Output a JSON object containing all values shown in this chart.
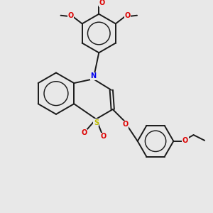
{
  "background_color": "#e8e8e8",
  "bond_color": "#1a1a1a",
  "atom_colors": {
    "N": "#0000ee",
    "O": "#dd0000",
    "S": "#bbbb00"
  },
  "figsize": [
    3.0,
    3.0
  ],
  "dpi": 100,
  "lw": 1.4,
  "fs": 7.0
}
